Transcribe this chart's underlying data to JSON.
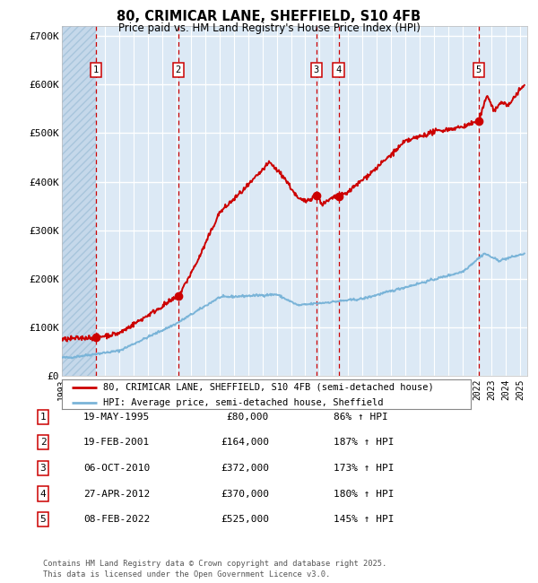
{
  "title1": "80, CRIMICAR LANE, SHEFFIELD, S10 4FB",
  "title2": "Price paid vs. HM Land Registry's House Price Index (HPI)",
  "ylim": [
    0,
    720000
  ],
  "yticks": [
    0,
    100000,
    200000,
    300000,
    400000,
    500000,
    600000,
    700000
  ],
  "ytick_labels": [
    "£0",
    "£100K",
    "£200K",
    "£300K",
    "£400K",
    "£500K",
    "£600K",
    "£700K"
  ],
  "hpi_color": "#7ab4d8",
  "price_color": "#cc0000",
  "marker_color": "#cc0000",
  "background_color": "#dce9f5",
  "hatch_color": "#c5d8ea",
  "grid_color": "#ffffff",
  "vline_color": "#cc0000",
  "sale_points": [
    {
      "date_num": 1995.38,
      "price": 80000,
      "label": "1"
    },
    {
      "date_num": 2001.13,
      "price": 164000,
      "label": "2"
    },
    {
      "date_num": 2010.76,
      "price": 372000,
      "label": "3"
    },
    {
      "date_num": 2012.32,
      "price": 370000,
      "label": "4"
    },
    {
      "date_num": 2022.1,
      "price": 525000,
      "label": "5"
    }
  ],
  "table_rows": [
    {
      "num": "1",
      "date": "19-MAY-1995",
      "price": "£80,000",
      "hpi": "86% ↑ HPI"
    },
    {
      "num": "2",
      "date": "19-FEB-2001",
      "price": "£164,000",
      "hpi": "187% ↑ HPI"
    },
    {
      "num": "3",
      "date": "06-OCT-2010",
      "price": "£372,000",
      "hpi": "173% ↑ HPI"
    },
    {
      "num": "4",
      "date": "27-APR-2012",
      "price": "£370,000",
      "hpi": "180% ↑ HPI"
    },
    {
      "num": "5",
      "date": "08-FEB-2022",
      "price": "£525,000",
      "hpi": "145% ↑ HPI"
    }
  ],
  "legend_line1": "80, CRIMICAR LANE, SHEFFIELD, S10 4FB (semi-detached house)",
  "legend_line2": "HPI: Average price, semi-detached house, Sheffield",
  "footer": "Contains HM Land Registry data © Crown copyright and database right 2025.\nThis data is licensed under the Open Government Licence v3.0.",
  "xmin": 1993.0,
  "xmax": 2025.5
}
